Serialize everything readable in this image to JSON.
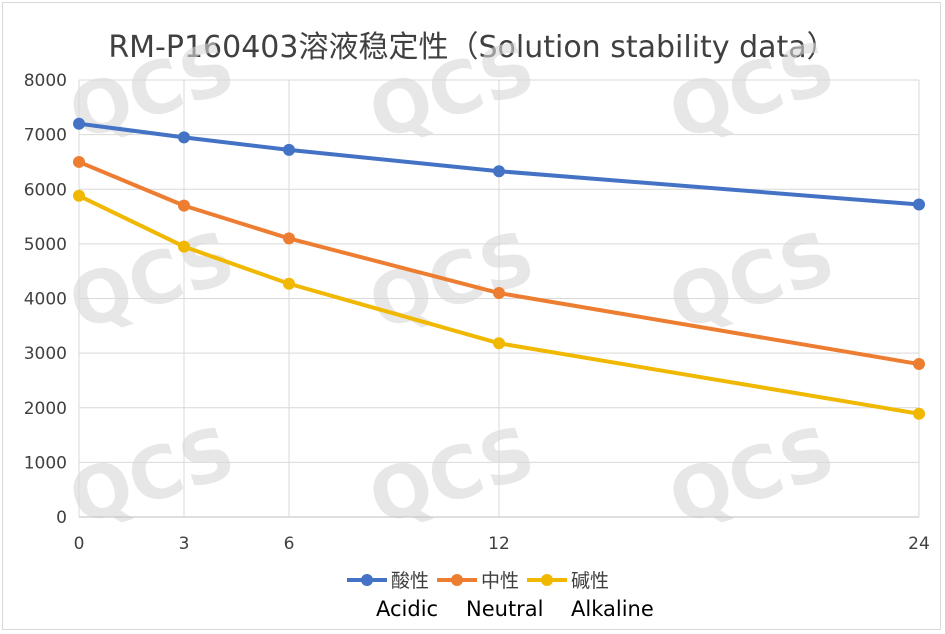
{
  "chart_data": {
    "type": "line",
    "title": "RM-P160403溶液稳定性（Solution stability data）",
    "x": [
      0,
      3,
      6,
      12,
      24
    ],
    "x_tick_labels": [
      "0",
      "3",
      "6",
      "12",
      "24"
    ],
    "ylim": [
      0,
      8000
    ],
    "y_ticks": [
      0,
      1000,
      2000,
      3000,
      4000,
      5000,
      6000,
      7000,
      8000
    ],
    "grid": true,
    "legend": "bottom",
    "series": [
      {
        "name": "酸性",
        "values": [
          7200,
          6950,
          6720,
          6330,
          5720
        ],
        "color": "#4472c4"
      },
      {
        "name": "中性",
        "values": [
          6500,
          5700,
          5100,
          4100,
          2800
        ],
        "color": "#ed7d31"
      },
      {
        "name": "碱性",
        "values": [
          5880,
          4950,
          4270,
          3180,
          1890
        ],
        "color": "#f0b800"
      }
    ],
    "annotations": [
      "Acidic",
      "Neutral",
      "Alkaline"
    ],
    "watermark": "QCS"
  }
}
